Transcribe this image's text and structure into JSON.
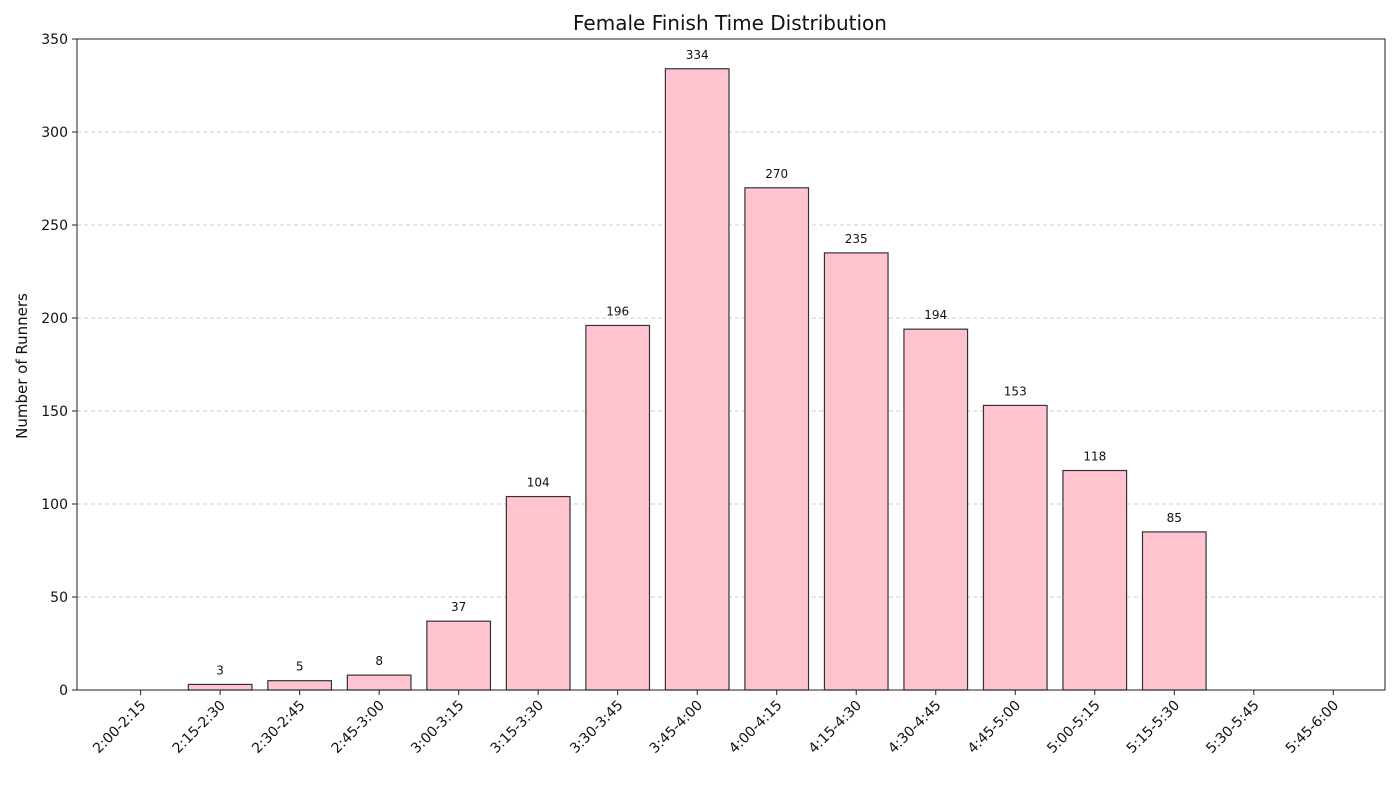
{
  "colors": {
    "bar_fill": "#ffc4d0",
    "bar_edge": "#333333",
    "grid": "#cccccc",
    "axis": "#222222"
  },
  "chart_data": {
    "type": "bar",
    "title": "Female Finish Time Distribution",
    "xlabel": "",
    "ylabel": "Number of Runners",
    "categories": [
      "2:00-2:15",
      "2:15-2:30",
      "2:30-2:45",
      "2:45-3:00",
      "3:00-3:15",
      "3:15-3:30",
      "3:30-3:45",
      "3:45-4:00",
      "4:00-4:15",
      "4:15-4:30",
      "4:30-4:45",
      "4:45-5:00",
      "5:00-5:15",
      "5:15-5:30",
      "5:30-5:45",
      "5:45-6:00"
    ],
    "values": [
      0,
      3,
      5,
      8,
      37,
      104,
      196,
      334,
      270,
      235,
      194,
      153,
      118,
      85,
      0,
      0
    ],
    "data_labels": [
      "",
      "3",
      "5",
      "8",
      "37",
      "104",
      "196",
      "334",
      "270",
      "235",
      "194",
      "153",
      "118",
      "85",
      "",
      ""
    ],
    "ylim": [
      0,
      350
    ],
    "yticks": [
      0,
      50,
      100,
      150,
      200,
      250,
      300,
      350
    ],
    "grid": "y-dashed",
    "legend": "none"
  }
}
